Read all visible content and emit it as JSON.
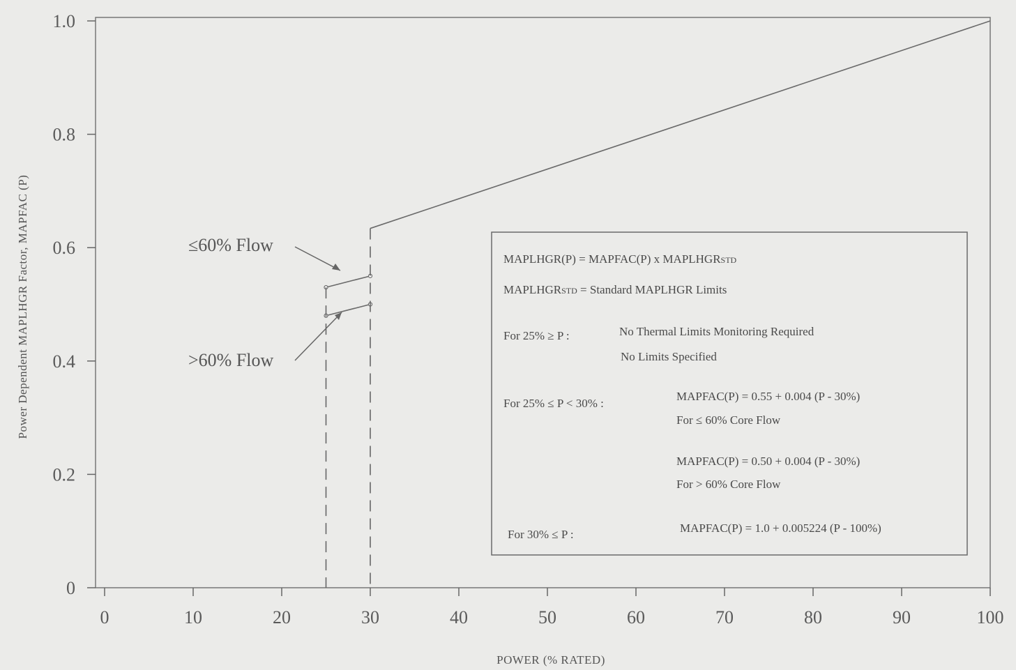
{
  "chart_data": {
    "type": "line",
    "xlabel": "POWER (% RATED)",
    "ylabel": "Power Dependent MAPLHGR Factor,  MAPFAC (P)",
    "xlim": [
      0,
      100
    ],
    "ylim": [
      0,
      1.0
    ],
    "x_ticks": [
      "0",
      "10",
      "20",
      "30",
      "40",
      "50",
      "60",
      "70",
      "80",
      "90",
      "100"
    ],
    "y_ticks": [
      "0",
      "0.2",
      "0.4",
      "0.6",
      "0.8",
      "1.0"
    ],
    "series": [
      {
        "name": "",
        "x": [
          30,
          100
        ],
        "y": [
          0.634,
          1.0
        ]
      },
      {
        "name": "≤60% Flow",
        "x": [
          25,
          30
        ],
        "y": [
          0.53,
          0.55
        ]
      },
      {
        "name": ">60% Flow",
        "x": [
          25,
          30
        ],
        "y": [
          0.48,
          0.5
        ]
      }
    ],
    "dashed_verticals": [
      25,
      30
    ],
    "annotations": [
      {
        "text": "≤60% Flow",
        "x": 25,
        "y": 0.55
      },
      {
        "text": ">60% Flow",
        "x": 25,
        "y": 0.49
      }
    ],
    "legend_box": {
      "lines": [
        {
          "col1": "MAPLHGR(P)  =  MAPFAC(P)  x  MAPLHGR",
          "col1_sub": "STD"
        },
        {
          "col1": "MAPLHGR",
          "col1_sub": "STD",
          "col1_rest": "  =  Standard MAPLHGR Limits"
        },
        {
          "col1": "For 25% ≥ P  :",
          "col2": "No Thermal Limits Monitoring Required"
        },
        {
          "col2": "No Limits Specified"
        },
        {
          "col1": "For 25% ≤ P < 30%  :",
          "col3": "MAPFAC(P)  =  0.55 + 0.004  (P - 30%)"
        },
        {
          "col3": "For ≤ 60% Core Flow"
        },
        {
          "col3": "MAPFAC(P)  =  0.50 + 0.004  (P - 30%)"
        },
        {
          "col3": "For > 60% Core Flow"
        },
        {
          "col1": "For 30% ≤ P  :",
          "col3": "MAPFAC(P)  = 1.0 + 0.005224  (P - 100%)"
        }
      ]
    },
    "grid": false,
    "legend_position": "bottom-right",
    "colors": {
      "line": "#6a6a6a",
      "text": "#555555",
      "background": "#ebebe9"
    }
  }
}
